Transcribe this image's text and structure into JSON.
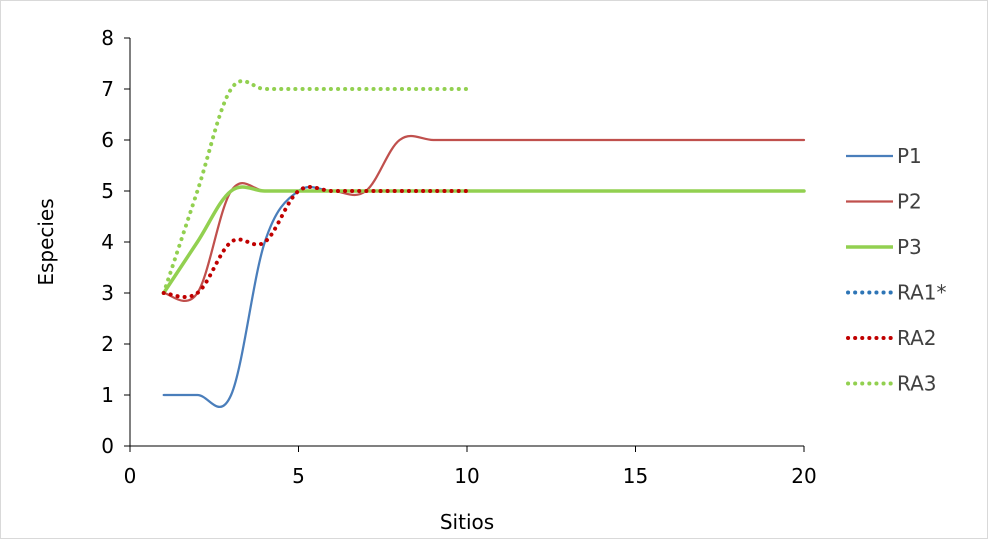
{
  "chart_data": {
    "type": "line",
    "title": "",
    "xlabel": "Sitios",
    "ylabel": "Especies",
    "xlim": [
      0,
      20
    ],
    "ylim": [
      0,
      8
    ],
    "x_ticks": [
      "0",
      "5",
      "10",
      "15",
      "20"
    ],
    "y_ticks": [
      "0",
      "1",
      "2",
      "3",
      "4",
      "5",
      "6",
      "7",
      "8"
    ],
    "grid": false,
    "legend_position": "right",
    "series": [
      {
        "name": "P1",
        "color": "#4a7ebb",
        "style": "solid",
        "x": [
          1,
          2,
          3,
          4,
          5,
          6,
          7,
          8,
          9,
          10,
          11,
          12,
          13,
          14,
          15,
          16,
          17,
          18,
          19,
          20
        ],
        "values": [
          1,
          1,
          1,
          4,
          5,
          5,
          5,
          5,
          5,
          5,
          5,
          5,
          5,
          5,
          5,
          5,
          5,
          5,
          5,
          5
        ]
      },
      {
        "name": "P2",
        "color": "#c0504d",
        "style": "solid",
        "x": [
          1,
          2,
          3,
          4,
          5,
          6,
          7,
          8,
          9,
          10,
          11,
          12,
          13,
          14,
          15,
          16,
          17,
          18,
          19,
          20
        ],
        "values": [
          3,
          3,
          5,
          5,
          5,
          5,
          5,
          6,
          6,
          6,
          6,
          6,
          6,
          6,
          6,
          6,
          6,
          6,
          6,
          6
        ]
      },
      {
        "name": "P3",
        "color": "#92d050",
        "style": "solid",
        "x": [
          1,
          2,
          3,
          4,
          5,
          6,
          7,
          8,
          9,
          10,
          11,
          12,
          13,
          14,
          15,
          16,
          17,
          18,
          19,
          20
        ],
        "values": [
          3,
          4,
          5,
          5,
          5,
          5,
          5,
          5,
          5,
          5,
          5,
          5,
          5,
          5,
          5,
          5,
          5,
          5,
          5,
          5
        ]
      },
      {
        "name": "RA1*",
        "color": "#2e75b6",
        "style": "dotted",
        "x": [],
        "values": []
      },
      {
        "name": "RA2",
        "color": "#c00000",
        "style": "dotted",
        "x": [
          1,
          2,
          3,
          4,
          5,
          6,
          7,
          8,
          9,
          10
        ],
        "values": [
          3,
          3,
          4,
          4,
          5,
          5,
          5,
          5,
          5,
          5
        ]
      },
      {
        "name": "RA3",
        "color": "#92d050",
        "style": "dotted",
        "x": [
          1,
          2,
          3,
          4,
          5,
          6,
          7,
          8,
          9,
          10
        ],
        "values": [
          3,
          5,
          7,
          7,
          7,
          7,
          7,
          7,
          7,
          7
        ]
      }
    ]
  }
}
